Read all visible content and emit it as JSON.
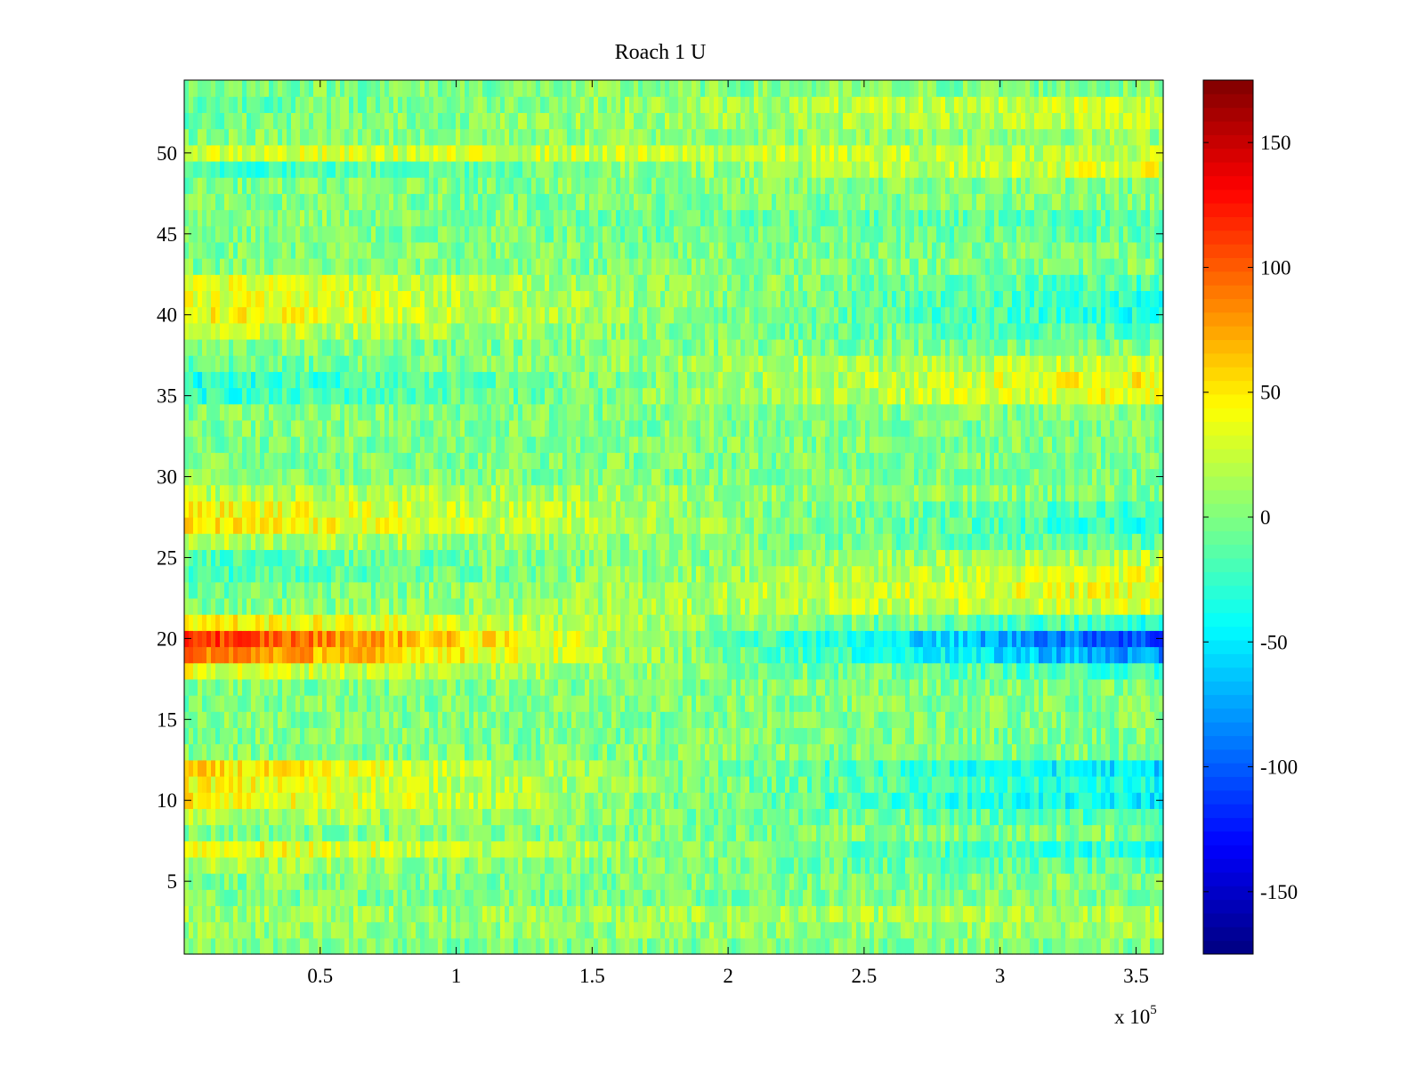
{
  "chart_data": {
    "type": "heatmap",
    "title": "Roach 1 U",
    "xlabel": "",
    "ylabel": "",
    "x_multiplier_label": {
      "base": "x 10",
      "exponent": "5"
    },
    "xlim": [
      0,
      3.6
    ],
    "ylim": [
      0.5,
      54.5
    ],
    "xticks": [
      0.5,
      1,
      1.5,
      2,
      2.5,
      3,
      3.5
    ],
    "xtick_labels": [
      "0.5",
      "1",
      "1.5",
      "2",
      "2.5",
      "3",
      "3.5"
    ],
    "yticks": [
      5,
      10,
      15,
      20,
      25,
      30,
      35,
      40,
      45,
      50
    ],
    "ytick_labels": [
      "5",
      "10",
      "15",
      "20",
      "25",
      "30",
      "35",
      "40",
      "45",
      "50"
    ],
    "rows": 54,
    "colormap": "jet",
    "color_limits": [
      -175,
      175
    ],
    "colorbar_ticks": [
      150,
      100,
      50,
      0,
      -50,
      -100,
      -150
    ],
    "colorbar_tick_labels": [
      "150",
      "100",
      "50",
      "0",
      "-50",
      "-100",
      "-150"
    ],
    "noise_amplitude": 22,
    "row_trends": [
      {
        "row": 20,
        "start": 120,
        "end": -110
      },
      {
        "row": 19,
        "start": 95,
        "end": -85
      },
      {
        "row": 21,
        "start": 50,
        "end": -30
      },
      {
        "row": 18,
        "start": 35,
        "end": -25
      },
      {
        "row": 12,
        "start": 55,
        "end": -55
      },
      {
        "row": 11,
        "start": 45,
        "end": -40
      },
      {
        "row": 10,
        "start": 50,
        "end": -50
      },
      {
        "row": 9,
        "start": 20,
        "end": -20
      },
      {
        "row": 7,
        "start": 45,
        "end": -35
      },
      {
        "row": 6,
        "start": 15,
        "end": -15
      },
      {
        "row": 28,
        "start": 45,
        "end": -25
      },
      {
        "row": 27,
        "start": 50,
        "end": -30
      },
      {
        "row": 26,
        "start": 20,
        "end": -15
      },
      {
        "row": 29,
        "start": 20,
        "end": 0
      },
      {
        "row": 41,
        "start": 40,
        "end": -30
      },
      {
        "row": 40,
        "start": 45,
        "end": -35
      },
      {
        "row": 42,
        "start": 35,
        "end": -20
      },
      {
        "row": 39,
        "start": 25,
        "end": -20
      },
      {
        "row": 36,
        "start": -35,
        "end": 45
      },
      {
        "row": 35,
        "start": -30,
        "end": 40
      },
      {
        "row": 37,
        "start": -10,
        "end": 25
      },
      {
        "row": 24,
        "start": -20,
        "end": 35
      },
      {
        "row": 23,
        "start": -10,
        "end": 40
      },
      {
        "row": 22,
        "start": 0,
        "end": 30
      },
      {
        "row": 25,
        "start": -15,
        "end": 20
      },
      {
        "row": 50,
        "start": 30,
        "end": 20
      },
      {
        "row": 49,
        "start": -25,
        "end": 35
      },
      {
        "row": 53,
        "start": -10,
        "end": 30
      },
      {
        "row": 52,
        "start": -5,
        "end": 25
      },
      {
        "row": 51,
        "start": 0,
        "end": 10
      },
      {
        "row": 46,
        "start": 5,
        "end": -15
      },
      {
        "row": 45,
        "start": 0,
        "end": -10
      },
      {
        "row": 3,
        "start": 10,
        "end": 15
      },
      {
        "row": 2,
        "start": 5,
        "end": 10
      }
    ],
    "default_row_level": 0,
    "colors": {
      "frame": "#000000",
      "background": "#ffffff"
    }
  }
}
